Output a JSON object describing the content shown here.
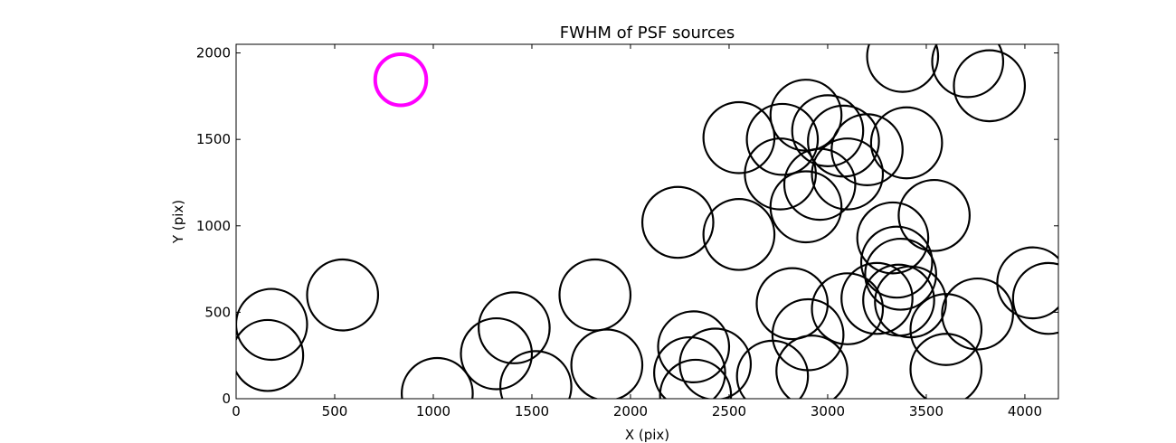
{
  "chart_data": {
    "type": "scatter",
    "title": "FWHM of PSF sources",
    "xlabel": "X (pix)",
    "ylabel": "Y (pix)",
    "xlim": [
      0,
      4170
    ],
    "ylim": [
      0,
      2050
    ],
    "xticks": [
      0,
      500,
      1000,
      1500,
      2000,
      2500,
      3000,
      3500,
      4000
    ],
    "yticks": [
      0,
      500,
      1000,
      1500,
      2000
    ],
    "grid": false,
    "marker": "open circle",
    "marker_radius_data_x": 180,
    "colors": {
      "default": "#000000",
      "highlight": "#ff00ff"
    },
    "highlight": {
      "x": 835,
      "y": 1845
    },
    "sources": [
      {
        "x": 180,
        "y": 430
      },
      {
        "x": 160,
        "y": 250
      },
      {
        "x": 540,
        "y": 600
      },
      {
        "x": 1020,
        "y": 30
      },
      {
        "x": 1320,
        "y": 260
      },
      {
        "x": 1410,
        "y": 410
      },
      {
        "x": 1520,
        "y": 70
      },
      {
        "x": 1820,
        "y": 600
      },
      {
        "x": 1880,
        "y": 195
      },
      {
        "x": 2240,
        "y": 1020
      },
      {
        "x": 2300,
        "y": 150
      },
      {
        "x": 2320,
        "y": 300
      },
      {
        "x": 2330,
        "y": 20
      },
      {
        "x": 2430,
        "y": 200
      },
      {
        "x": 2550,
        "y": 950
      },
      {
        "x": 2550,
        "y": 1510
      },
      {
        "x": 2720,
        "y": 130
      },
      {
        "x": 2760,
        "y": 1300
      },
      {
        "x": 2770,
        "y": 1500
      },
      {
        "x": 2820,
        "y": 550
      },
      {
        "x": 2900,
        "y": 370
      },
      {
        "x": 2890,
        "y": 1110
      },
      {
        "x": 2890,
        "y": 1640
      },
      {
        "x": 2920,
        "y": 160
      },
      {
        "x": 2960,
        "y": 1240
      },
      {
        "x": 3000,
        "y": 1550
      },
      {
        "x": 3080,
        "y": 1490
      },
      {
        "x": 3100,
        "y": 1300
      },
      {
        "x": 3100,
        "y": 520
      },
      {
        "x": 3200,
        "y": 1440
      },
      {
        "x": 3250,
        "y": 580
      },
      {
        "x": 3330,
        "y": 930
      },
      {
        "x": 3350,
        "y": 790
      },
      {
        "x": 3370,
        "y": 720
      },
      {
        "x": 3360,
        "y": 570
      },
      {
        "x": 3400,
        "y": 1480
      },
      {
        "x": 3380,
        "y": 1980
      },
      {
        "x": 3420,
        "y": 560
      },
      {
        "x": 3540,
        "y": 1060
      },
      {
        "x": 3600,
        "y": 400
      },
      {
        "x": 3600,
        "y": 170
      },
      {
        "x": 3710,
        "y": 1950
      },
      {
        "x": 3760,
        "y": 490
      },
      {
        "x": 3820,
        "y": 1810
      },
      {
        "x": 4040,
        "y": 670
      },
      {
        "x": 4120,
        "y": 580
      }
    ]
  }
}
